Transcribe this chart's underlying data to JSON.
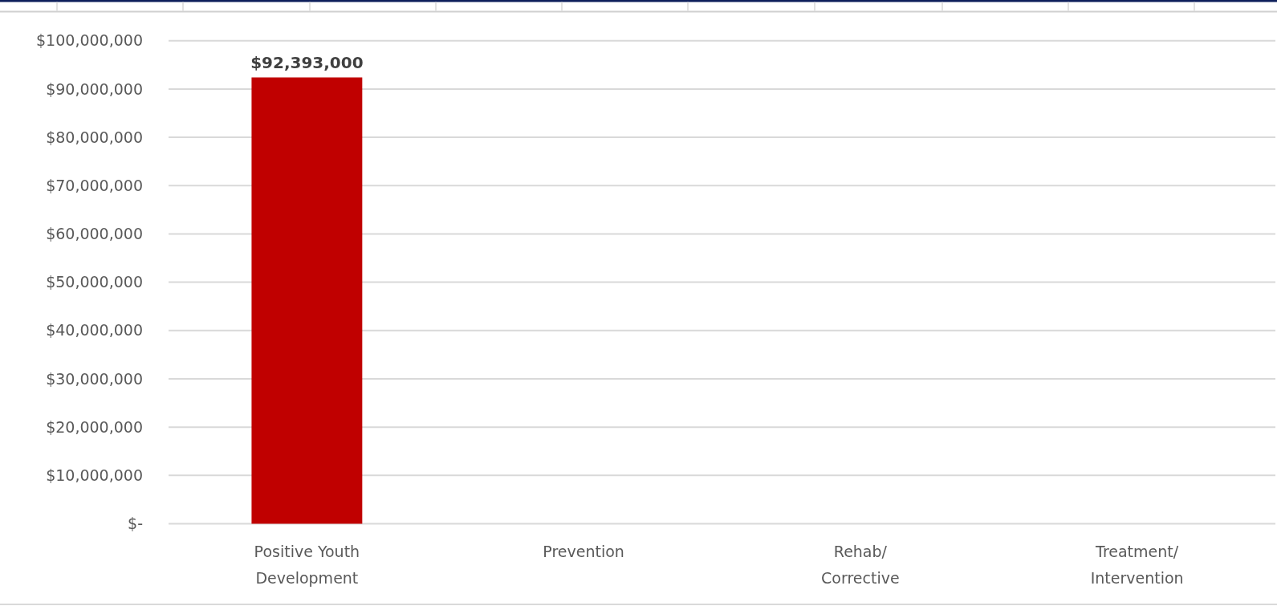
{
  "chart_data": {
    "type": "bar",
    "categories": [
      "Positive Youth Development",
      "Prevention",
      "Rehab/ Corrective",
      "Treatment/ Intervention"
    ],
    "values": [
      92393000,
      null,
      null,
      null
    ],
    "value_labels": [
      "$92,393,000",
      null,
      null,
      null
    ],
    "color": "#c00000",
    "ylim": [
      0,
      100000000
    ],
    "yticks": [
      {
        "value": 0,
        "label": "$-"
      },
      {
        "value": 10000000,
        "label": "$10,000,000"
      },
      {
        "value": 20000000,
        "label": "$20,000,000"
      },
      {
        "value": 30000000,
        "label": "$30,000,000"
      },
      {
        "value": 40000000,
        "label": "$40,000,000"
      },
      {
        "value": 50000000,
        "label": "$50,000,000"
      },
      {
        "value": 60000000,
        "label": "$60,000,000"
      },
      {
        "value": 70000000,
        "label": "$70,000,000"
      },
      {
        "value": 80000000,
        "label": "$80,000,000"
      },
      {
        "value": 90000000,
        "label": "$90,000,000"
      },
      {
        "value": 100000000,
        "label": "$100,000,000"
      }
    ],
    "grid": "y"
  }
}
